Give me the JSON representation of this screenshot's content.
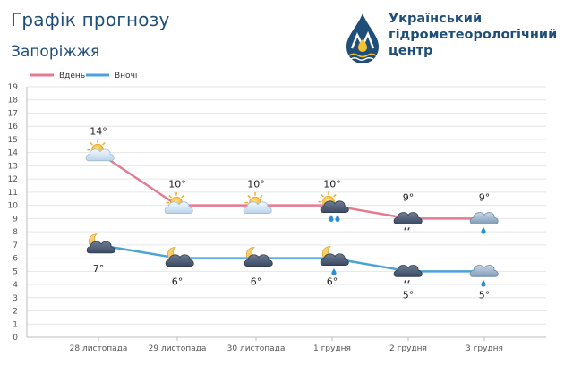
{
  "header": {
    "title": "Графік прогнозу",
    "city": "Запоріжжя"
  },
  "brand": {
    "name_line1": "Український",
    "name_line2": "гідрометеорологічний",
    "name_line3": "центр",
    "logo_icon": "drop-logo-icon"
  },
  "colors": {
    "day_line": "#e57b92",
    "night_line": "#4aa5d6",
    "title": "#1f4e79",
    "grid": "#e6e6e6"
  },
  "chart_data": {
    "type": "line",
    "title": "Графік прогнозу",
    "xlabel": "",
    "ylabel": "",
    "ylim": [
      0,
      19
    ],
    "grid": true,
    "legend_position": "top-left",
    "categories": [
      "28 листопада",
      "29 листопада",
      "30 листопада",
      "1 грудня",
      "2 грудня",
      "3 грудня"
    ],
    "series": [
      {
        "name": "Вдень",
        "color": "#e57b92",
        "values": [
          14,
          10,
          10,
          10,
          9,
          9
        ],
        "labels": [
          "14°",
          "10°",
          "10°",
          "10°",
          "9°",
          "9°"
        ],
        "icons": [
          "sun-cloud-icon",
          "sun-cloud-icon",
          "sun-cloud-icon",
          "sun-cloud-rain-icon",
          "dark-cloud-drizzle-icon",
          "cloud-rain-icon"
        ]
      },
      {
        "name": "Вночі",
        "color": "#4aa5d6",
        "values": [
          7,
          6,
          6,
          6,
          5,
          5
        ],
        "labels": [
          "7°",
          "6°",
          "6°",
          "6°",
          "5°",
          "5°"
        ],
        "icons": [
          "moon-cloud-icon",
          "moon-cloud-icon",
          "moon-cloud-icon",
          "moon-cloud-rain-icon",
          "dark-cloud-drizzle-icon",
          "cloud-rain-icon"
        ]
      }
    ]
  }
}
